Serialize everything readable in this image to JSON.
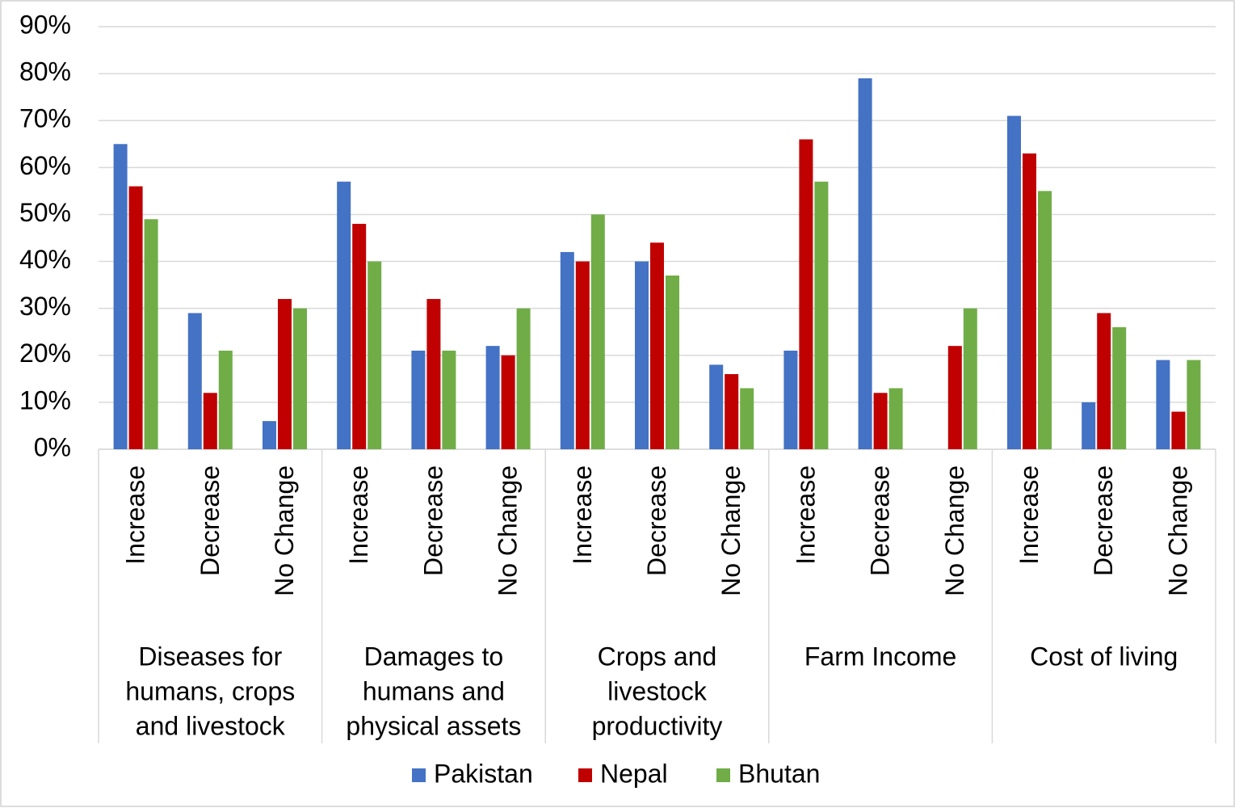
{
  "chart_data": {
    "type": "bar",
    "categories": [
      "Increase",
      "Decrease",
      "No Change",
      "Increase",
      "Decrease",
      "No Change",
      "Increase",
      "Decrease",
      "No Change",
      "Increase",
      "Decrease",
      "No Change",
      "Increase",
      "Decrease",
      "No Change"
    ],
    "groups": [
      [
        "Diseases for",
        "humans, crops",
        "and livestock"
      ],
      [
        "Damages to",
        "humans and",
        "physical assets"
      ],
      [
        "Crops and",
        "livestock",
        "productivity"
      ],
      [
        "Farm Income"
      ],
      [
        "Cost of living"
      ]
    ],
    "series": [
      {
        "name": "Pakistan",
        "color": "#4472c4",
        "values": [
          65,
          29,
          6,
          57,
          21,
          22,
          42,
          40,
          18,
          21,
          79,
          0,
          71,
          10,
          19
        ]
      },
      {
        "name": "Nepal",
        "color": "#c00000",
        "values": [
          56,
          12,
          32,
          48,
          32,
          20,
          40,
          44,
          16,
          66,
          12,
          22,
          63,
          29,
          8
        ]
      },
      {
        "name": "Bhutan",
        "color": "#70ad47",
        "values": [
          49,
          21,
          30,
          40,
          21,
          30,
          50,
          37,
          13,
          57,
          13,
          30,
          55,
          26,
          19
        ]
      }
    ],
    "ylim": [
      0,
      90
    ],
    "yticks": [
      {
        "value": 0,
        "label": "0%"
      },
      {
        "value": 10,
        "label": "10%"
      },
      {
        "value": 20,
        "label": "20%"
      },
      {
        "value": 30,
        "label": "30%"
      },
      {
        "value": 40,
        "label": "40%"
      },
      {
        "value": 50,
        "label": "50%"
      },
      {
        "value": 60,
        "label": "60%"
      },
      {
        "value": 70,
        "label": "70%"
      },
      {
        "value": 80,
        "label": "80%"
      },
      {
        "value": 90,
        "label": "90%"
      }
    ],
    "grid": true,
    "legend": "bottom"
  }
}
